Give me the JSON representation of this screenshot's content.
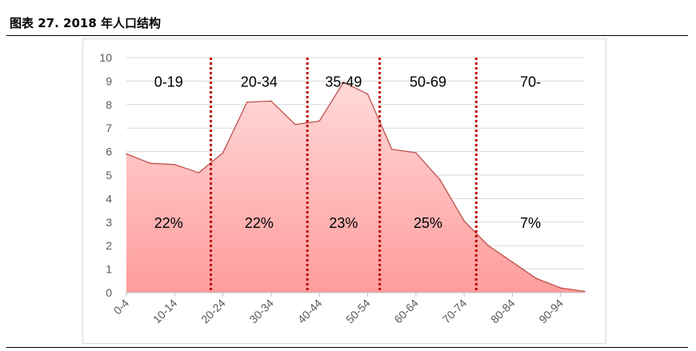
{
  "header": {
    "title": "图表 27. 2018 年人口结构"
  },
  "chart_data": {
    "type": "area",
    "title": "图表 27. 2018 年人口结构",
    "x": [
      "0-4",
      "5-9",
      "10-14",
      "15-19",
      "20-24",
      "25-29",
      "30-34",
      "35-39",
      "40-44",
      "45-49",
      "50-54",
      "55-59",
      "60-64",
      "65-69",
      "70-74",
      "75-79",
      "80-84",
      "85-89",
      "90-94",
      "95-99"
    ],
    "values": [
      5.9,
      5.5,
      5.45,
      5.1,
      5.95,
      8.1,
      8.15,
      7.15,
      7.3,
      8.95,
      8.45,
      6.1,
      5.95,
      4.8,
      3.05,
      2.0,
      1.3,
      0.6,
      0.2,
      0.05
    ],
    "tick_labels": [
      "0-4",
      "10-14",
      "20-24",
      "30-34",
      "40-44",
      "50-54",
      "60-64",
      "70-74",
      "80-84",
      "90-94"
    ],
    "ylim": [
      0,
      10
    ],
    "yticks": [
      0,
      1,
      2,
      3,
      4,
      5,
      6,
      7,
      8,
      9,
      10
    ],
    "dividers_after_index": [
      3.5,
      7.5,
      10.5,
      14.5
    ],
    "regions": [
      {
        "label": "0-19",
        "share": "22%"
      },
      {
        "label": "20-34",
        "share": "22%"
      },
      {
        "label": "35-49",
        "share": "23%"
      },
      {
        "label": "50-69",
        "share": "25%"
      },
      {
        "label": "70-",
        "share": "7%"
      }
    ],
    "grid": true,
    "colors": {
      "line": "#c0504d",
      "fill_top": "#ffd9d9",
      "fill_bottom": "#ff9c9c",
      "divider": "#c00000",
      "grid": "#d9d9d9"
    }
  }
}
